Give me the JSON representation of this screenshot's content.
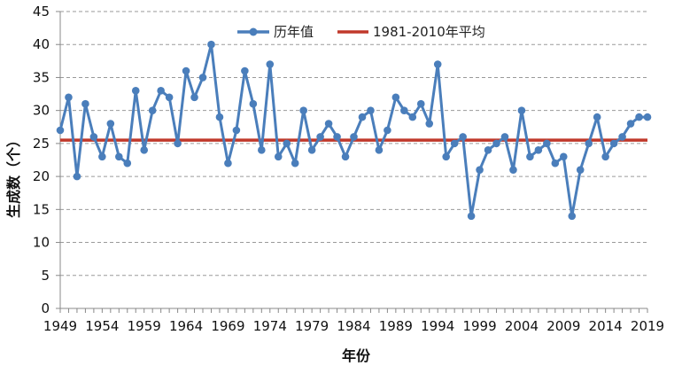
{
  "chart_data": {
    "type": "line",
    "title": "",
    "xlabel": "年份",
    "ylabel": "生成数（个）",
    "ylim": [
      0,
      45
    ],
    "yticks": [
      0,
      5,
      10,
      15,
      20,
      25,
      30,
      35,
      40,
      45
    ],
    "xticks": [
      1949,
      1954,
      1959,
      1964,
      1969,
      1974,
      1979,
      1984,
      1989,
      1994,
      1999,
      2004,
      2009,
      2014,
      2019
    ],
    "xrange": [
      1949,
      2019
    ],
    "grid": "horizontal dashed",
    "legend_position": "top-center",
    "series": [
      {
        "name": "历年值",
        "color": "#4a7ebb",
        "x": [
          1949,
          1950,
          1951,
          1952,
          1953,
          1954,
          1955,
          1956,
          1957,
          1958,
          1959,
          1960,
          1961,
          1962,
          1963,
          1964,
          1965,
          1966,
          1967,
          1968,
          1969,
          1970,
          1971,
          1972,
          1973,
          1974,
          1975,
          1976,
          1977,
          1978,
          1979,
          1980,
          1981,
          1982,
          1983,
          1984,
          1985,
          1986,
          1987,
          1988,
          1989,
          1990,
          1991,
          1992,
          1993,
          1994,
          1995,
          1996,
          1997,
          1998,
          1999,
          2000,
          2001,
          2002,
          2003,
          2004,
          2005,
          2006,
          2007,
          2008,
          2009,
          2010,
          2011,
          2012,
          2013,
          2014,
          2015,
          2016,
          2017,
          2018,
          2019
        ],
        "values": [
          27,
          32,
          20,
          31,
          26,
          23,
          28,
          23,
          22,
          33,
          24,
          30,
          33,
          32,
          25,
          36,
          32,
          35,
          40,
          29,
          22,
          27,
          36,
          31,
          24,
          37,
          23,
          25,
          22,
          30,
          24,
          26,
          28,
          26,
          23,
          26,
          29,
          30,
          24,
          27,
          32,
          30,
          29,
          31,
          28,
          37,
          23,
          25,
          26,
          14,
          21,
          24,
          25,
          26,
          21,
          30,
          23,
          24,
          25,
          22,
          23,
          14,
          21,
          25,
          29,
          23,
          25,
          26,
          28,
          29,
          29
        ]
      },
      {
        "name": "1981-2010年平均",
        "color": "#c0392b",
        "value": 25.5
      }
    ]
  }
}
